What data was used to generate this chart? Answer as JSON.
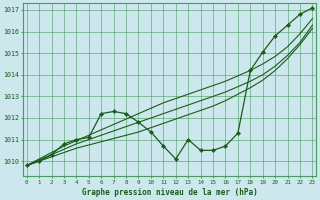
{
  "title": "Graphe pression niveau de la mer (hPa)",
  "xlabel_hours": [
    0,
    1,
    2,
    3,
    4,
    5,
    6,
    7,
    8,
    9,
    10,
    11,
    12,
    13,
    14,
    15,
    16,
    17,
    18,
    19,
    20,
    21,
    22,
    23
  ],
  "ylim": [
    1009.3,
    1017.3
  ],
  "yticks": [
    1010,
    1011,
    1012,
    1013,
    1014,
    1015,
    1016,
    1017
  ],
  "bg_color": "#cce8ec",
  "grid_color": "#4d9966",
  "line_color": "#1a5c1a",
  "line_main": [
    1009.8,
    1010.0,
    1010.3,
    1010.8,
    1011.0,
    1011.1,
    1012.2,
    1012.3,
    1012.2,
    1011.8,
    1011.35,
    1010.7,
    1010.1,
    1011.0,
    1010.5,
    1010.5,
    1010.7,
    1011.3,
    1014.2,
    1015.05,
    1015.8,
    1016.3,
    1016.8,
    1017.1
  ],
  "line_straight1": [
    1009.8,
    1010.1,
    1010.4,
    1010.7,
    1010.95,
    1011.2,
    1011.45,
    1011.7,
    1011.95,
    1012.2,
    1012.45,
    1012.7,
    1012.9,
    1013.1,
    1013.3,
    1013.5,
    1013.7,
    1013.95,
    1014.2,
    1014.5,
    1014.85,
    1015.3,
    1015.9,
    1016.6
  ],
  "line_straight2": [
    1009.8,
    1010.05,
    1010.3,
    1010.55,
    1010.8,
    1011.0,
    1011.2,
    1011.4,
    1011.6,
    1011.8,
    1012.0,
    1012.2,
    1012.4,
    1012.6,
    1012.8,
    1013.0,
    1013.2,
    1013.45,
    1013.7,
    1014.0,
    1014.4,
    1014.9,
    1015.5,
    1016.3
  ],
  "line_straight3": [
    1009.8,
    1010.0,
    1010.2,
    1010.4,
    1010.6,
    1010.75,
    1010.9,
    1011.05,
    1011.2,
    1011.35,
    1011.55,
    1011.75,
    1011.95,
    1012.15,
    1012.35,
    1012.55,
    1012.8,
    1013.1,
    1013.4,
    1013.75,
    1014.2,
    1014.75,
    1015.4,
    1016.15
  ]
}
